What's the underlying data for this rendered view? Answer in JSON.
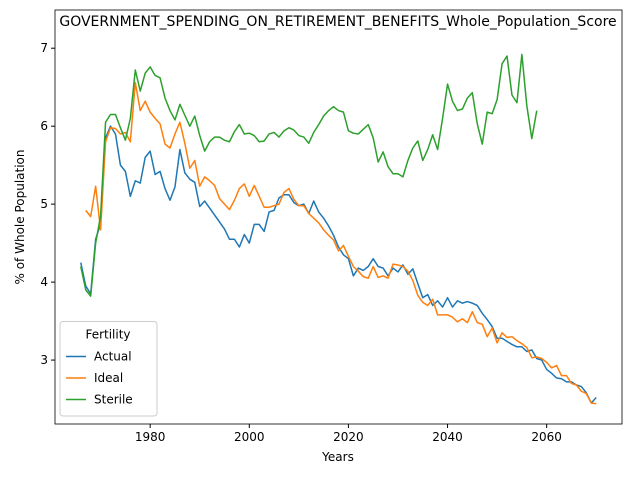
{
  "chart_data": {
    "type": "line",
    "title": "GOVERNMENT_SPENDING_ON_RETIREMENT_BENEFITS_Whole_Population_Score",
    "x_label": "Years",
    "y_label": "% of Whole Population",
    "legend_title": "Fertility",
    "legend_loc": "lower left",
    "xlim": [
      1960.8,
      2075.2
    ],
    "ylim": [
      2.18,
      7.49
    ],
    "xticks": [
      1980,
      2000,
      2020,
      2040,
      2060
    ],
    "yticks": [
      3,
      4,
      5,
      6,
      7
    ],
    "x": [
      1966,
      1967,
      1968,
      1969,
      1970,
      1971,
      1972,
      1973,
      1974,
      1975,
      1976,
      1977,
      1978,
      1979,
      1980,
      1981,
      1982,
      1983,
      1984,
      1985,
      1986,
      1987,
      1988,
      1989,
      1990,
      1991,
      1992,
      1993,
      1994,
      1995,
      1996,
      1997,
      1998,
      1999,
      2000,
      2001,
      2002,
      2003,
      2004,
      2005,
      2006,
      2007,
      2008,
      2009,
      2010,
      2011,
      2012,
      2013,
      2014,
      2015,
      2016,
      2017,
      2018,
      2019,
      2020,
      2021,
      2022,
      2023,
      2024,
      2025,
      2026,
      2027,
      2028,
      2029,
      2030,
      2031,
      2032,
      2033,
      2034,
      2035,
      2036,
      2037,
      2038,
      2039,
      2040,
      2041,
      2042,
      2043,
      2044,
      2045,
      2046,
      2047,
      2048,
      2049,
      2050,
      2051,
      2052,
      2053,
      2054,
      2055,
      2056,
      2057,
      2058,
      2059,
      2060,
      2061,
      2062,
      2063,
      2064,
      2065,
      2066,
      2067,
      2068,
      2069,
      2070
    ],
    "series": [
      {
        "name": "Actual",
        "color": "#1f77b4",
        "values": [
          4.25,
          3.95,
          3.85,
          4.55,
          4.75,
          5.85,
          6.0,
          5.9,
          5.5,
          5.42,
          5.1,
          5.3,
          5.27,
          5.6,
          5.68,
          5.38,
          5.42,
          5.2,
          5.05,
          5.22,
          5.7,
          5.4,
          5.32,
          5.28,
          4.97,
          5.04,
          4.95,
          4.86,
          4.77,
          4.68,
          4.55,
          4.55,
          4.45,
          4.61,
          4.5,
          4.74,
          4.74,
          4.65,
          4.9,
          4.92,
          5.08,
          5.12,
          5.12,
          5.02,
          4.98,
          5.0,
          4.88,
          5.04,
          4.9,
          4.82,
          4.72,
          4.6,
          4.45,
          4.35,
          4.3,
          4.08,
          4.18,
          4.15,
          4.2,
          4.3,
          4.2,
          4.18,
          4.08,
          4.18,
          4.13,
          4.22,
          4.1,
          4.17,
          3.98,
          3.8,
          3.84,
          3.7,
          3.76,
          3.68,
          3.8,
          3.68,
          3.76,
          3.73,
          3.75,
          3.73,
          3.7,
          3.6,
          3.52,
          3.43,
          3.28,
          3.28,
          3.24,
          3.2,
          3.17,
          3.17,
          3.11,
          3.13,
          3.02,
          3.0,
          2.88,
          2.83,
          2.77,
          2.76,
          2.72,
          2.72,
          2.68,
          2.66,
          2.58,
          2.45,
          2.52
        ]
      },
      {
        "name": "Ideal",
        "color": "#ff7f0e",
        "values": [
          null,
          4.92,
          4.84,
          5.23,
          4.67,
          5.8,
          5.98,
          5.97,
          5.9,
          5.92,
          5.8,
          6.56,
          6.2,
          6.32,
          6.18,
          6.1,
          6.03,
          5.77,
          5.72,
          5.9,
          6.05,
          5.78,
          5.46,
          5.56,
          5.23,
          5.35,
          5.3,
          5.24,
          5.07,
          5.0,
          4.93,
          5.05,
          5.2,
          5.26,
          5.1,
          5.24,
          5.1,
          4.96,
          4.96,
          4.98,
          5.0,
          5.15,
          5.2,
          5.06,
          4.98,
          4.98,
          4.88,
          4.82,
          4.76,
          4.67,
          4.6,
          4.54,
          4.4,
          4.47,
          4.33,
          4.2,
          4.14,
          4.07,
          4.05,
          4.2,
          4.06,
          4.08,
          4.05,
          4.23,
          4.22,
          4.2,
          4.14,
          4.02,
          3.83,
          3.74,
          3.7,
          3.78,
          3.58,
          3.58,
          3.58,
          3.55,
          3.49,
          3.53,
          3.48,
          3.62,
          3.48,
          3.46,
          3.3,
          3.41,
          3.22,
          3.35,
          3.29,
          3.3,
          3.25,
          3.21,
          3.16,
          3.03,
          3.04,
          3.02,
          2.97,
          2.9,
          2.93,
          2.8,
          2.8,
          2.7,
          2.68,
          2.6,
          2.57,
          2.45,
          2.44
        ]
      },
      {
        "name": "Sterile",
        "color": "#2ca02c",
        "values": [
          4.2,
          3.9,
          3.82,
          4.5,
          4.85,
          6.05,
          6.15,
          6.15,
          5.98,
          5.82,
          6.1,
          6.72,
          6.45,
          6.68,
          6.76,
          6.65,
          6.62,
          6.36,
          6.2,
          6.08,
          6.28,
          6.14,
          6.0,
          6.13,
          5.88,
          5.68,
          5.8,
          5.86,
          5.86,
          5.82,
          5.8,
          5.93,
          6.02,
          5.9,
          5.91,
          5.88,
          5.8,
          5.81,
          5.9,
          5.92,
          5.86,
          5.94,
          5.98,
          5.95,
          5.88,
          5.86,
          5.78,
          5.92,
          6.02,
          6.13,
          6.2,
          6.25,
          6.2,
          6.18,
          5.94,
          5.91,
          5.9,
          5.96,
          6.02,
          5.85,
          5.54,
          5.67,
          5.48,
          5.39,
          5.39,
          5.35,
          5.56,
          5.72,
          5.81,
          5.56,
          5.7,
          5.89,
          5.7,
          6.1,
          6.54,
          6.32,
          6.2,
          6.22,
          6.36,
          6.43,
          6.03,
          5.77,
          6.18,
          6.16,
          6.34,
          6.8,
          6.9,
          6.4,
          6.3,
          6.92,
          6.26,
          5.84,
          6.2,
          null,
          null,
          null,
          null,
          null,
          null,
          null,
          null,
          null,
          null,
          null,
          null
        ]
      }
    ]
  }
}
